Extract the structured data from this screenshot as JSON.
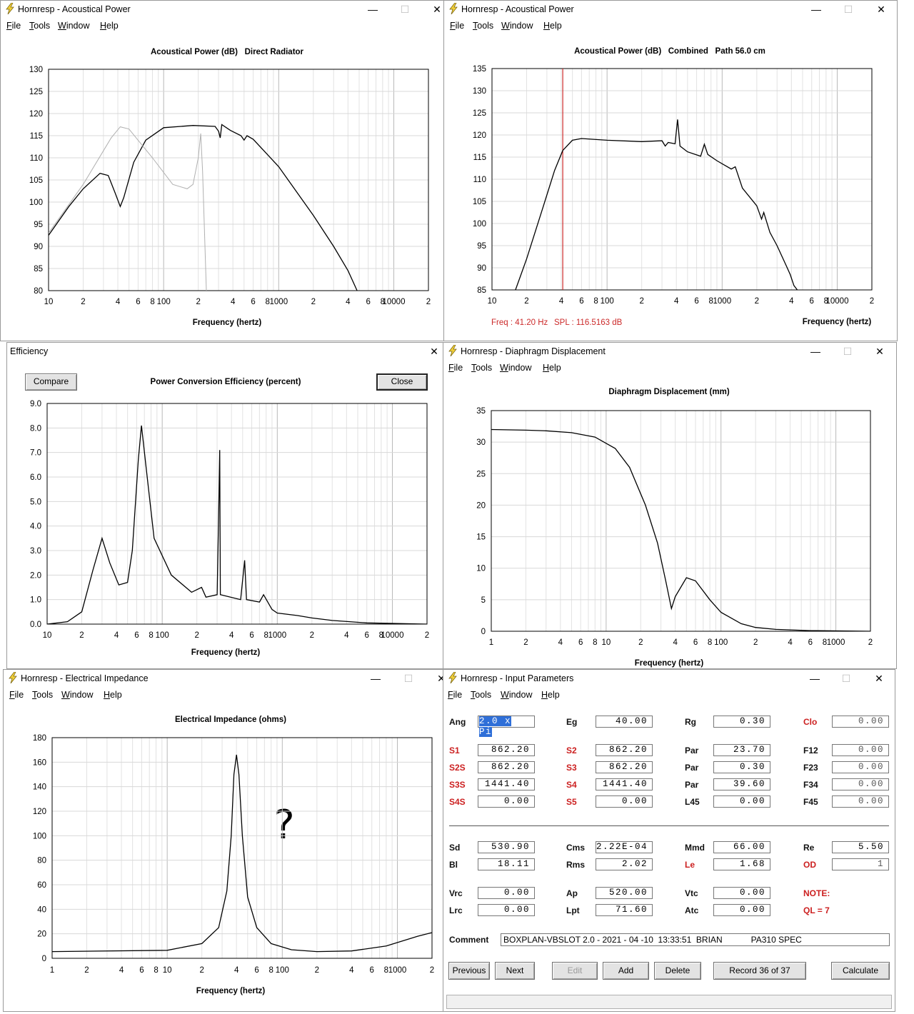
{
  "windows": {
    "acoustical_direct": {
      "title": "Hornresp - Acoustical Power",
      "menu": [
        "File",
        "Tools",
        "Window",
        "Help"
      ]
    },
    "acoustical_combined": {
      "title": "Hornresp - Acoustical Power",
      "menu": [
        "File",
        "Tools",
        "Window",
        "Help"
      ],
      "readout_freq": "Freq : 41.20 Hz",
      "readout_spl": "SPL : 116.5163 dB"
    },
    "efficiency": {
      "title": "Efficiency",
      "compare_label": "Compare",
      "close_label": "Close"
    },
    "displacement": {
      "title": "Hornresp - Diaphragm Displacement",
      "menu": [
        "File",
        "Tools",
        "Window",
        "Help"
      ]
    },
    "impedance": {
      "title": "Hornresp - Electrical Impedance",
      "menu": [
        "File",
        "Tools",
        "Window",
        "Help"
      ],
      "annotation": "?"
    },
    "input": {
      "title": "Hornresp - Input Parameters",
      "menu": [
        "File",
        "Tools",
        "Window",
        "Help"
      ]
    }
  },
  "colors": {
    "accent_red": "#cc2a2a",
    "secondary_curve": "#b0b0b0",
    "selection_blue": "#2f6fd8"
  },
  "icons": {
    "app": "lightning-bolt-icon",
    "minimize": "minimize-icon",
    "maximize": "maximize-icon",
    "close": "close-icon"
  },
  "chart_data": [
    {
      "type": "line",
      "title": "Acoustical Power (dB)   Direct Radiator",
      "xlabel": "Frequency (hertz)",
      "x_scale": "log",
      "xlim": [
        10,
        20000
      ],
      "ylim": [
        80,
        130
      ],
      "yticks": [
        "130",
        "125",
        "120",
        "115",
        "110",
        "105",
        "100",
        "95",
        "90",
        "85",
        "80"
      ],
      "xtick_labels": [
        "10",
        "2",
        "4",
        "6",
        "8",
        "100",
        "2",
        "4",
        "6",
        "8",
        "1000",
        "2",
        "4",
        "6",
        "8",
        "10000",
        "2"
      ],
      "grid": true,
      "series": [
        {
          "color": "#000000",
          "points": [
            [
              10,
              92.5
            ],
            [
              15,
              99
            ],
            [
              20,
              103
            ],
            [
              28,
              106.5
            ],
            [
              33,
              106
            ],
            [
              38,
              102
            ],
            [
              42,
              99
            ],
            [
              45,
              101
            ],
            [
              55,
              109
            ],
            [
              70,
              114
            ],
            [
              100,
              116.8
            ],
            [
              180,
              117.3
            ],
            [
              280,
              117.1
            ],
            [
              300,
              116
            ],
            [
              310,
              114.5
            ],
            [
              320,
              117.5
            ],
            [
              380,
              116.2
            ],
            [
              470,
              115
            ],
            [
              500,
              114
            ],
            [
              530,
              115
            ],
            [
              600,
              114.2
            ],
            [
              1000,
              108
            ],
            [
              2000,
              97
            ],
            [
              3000,
              90
            ],
            [
              4000,
              84.5
            ],
            [
              4800,
              80
            ]
          ]
        },
        {
          "color": "#b0b0b0",
          "points": [
            [
              10,
              93
            ],
            [
              20,
              104
            ],
            [
              35,
              114.5
            ],
            [
              42,
              117
            ],
            [
              50,
              116.5
            ],
            [
              80,
              110
            ],
            [
              120,
              104
            ],
            [
              160,
              103
            ],
            [
              180,
              104
            ],
            [
              200,
              110
            ],
            [
              210,
              115.5
            ],
            [
              218,
              107
            ],
            [
              235,
              80
            ]
          ]
        }
      ]
    },
    {
      "type": "line",
      "title": "Acoustical Power (dB)   Combined   Path 56.0 cm",
      "xlabel": "Frequency (hertz)",
      "x_scale": "log",
      "xlim": [
        10,
        20000
      ],
      "ylim": [
        85,
        135
      ],
      "yticks": [
        "135",
        "130",
        "125",
        "120",
        "115",
        "110",
        "105",
        "100",
        "95",
        "90",
        "85"
      ],
      "xtick_labels": [
        "10",
        "2",
        "4",
        "6",
        "8",
        "100",
        "2",
        "4",
        "6",
        "8",
        "1000",
        "2",
        "4",
        "6",
        "8",
        "10000",
        "2"
      ],
      "grid": true,
      "marker_x": 41.2,
      "series": [
        {
          "color": "#000000",
          "points": [
            [
              16,
              85
            ],
            [
              20,
              92
            ],
            [
              28,
              104
            ],
            [
              35,
              112
            ],
            [
              41.2,
              116.5
            ],
            [
              50,
              118.8
            ],
            [
              60,
              119.2
            ],
            [
              100,
              118.8
            ],
            [
              200,
              118.5
            ],
            [
              300,
              118.7
            ],
            [
              320,
              117.5
            ],
            [
              340,
              118.3
            ],
            [
              390,
              118
            ],
            [
              410,
              123.5
            ],
            [
              430,
              117.5
            ],
            [
              500,
              116.2
            ],
            [
              650,
              115.2
            ],
            [
              700,
              117.9
            ],
            [
              750,
              115.6
            ],
            [
              900,
              114.2
            ],
            [
              1200,
              112.3
            ],
            [
              1300,
              112.8
            ],
            [
              1500,
              108
            ],
            [
              2000,
              104
            ],
            [
              2200,
              101
            ],
            [
              2300,
              102.5
            ],
            [
              2600,
              98
            ],
            [
              3000,
              95
            ],
            [
              3600,
              90.5
            ],
            [
              3900,
              88.5
            ],
            [
              4200,
              86
            ],
            [
              4500,
              85
            ]
          ]
        }
      ]
    },
    {
      "type": "line",
      "title": "Power Conversion Efficiency (percent)",
      "xlabel": "Frequency (hertz)",
      "x_scale": "log",
      "xlim": [
        10,
        20000
      ],
      "ylim": [
        0,
        9
      ],
      "yticks": [
        "9.0",
        "8.0",
        "7.0",
        "6.0",
        "5.0",
        "4.0",
        "3.0",
        "2.0",
        "1.0",
        "0.0"
      ],
      "xtick_labels": [
        "10",
        "2",
        "4",
        "6",
        "8",
        "100",
        "2",
        "4",
        "6",
        "8",
        "1000",
        "2",
        "4",
        "6",
        "8",
        "10000",
        "2"
      ],
      "grid": true,
      "series": [
        {
          "color": "#000000",
          "points": [
            [
              10,
              0
            ],
            [
              15,
              0.1
            ],
            [
              20,
              0.5
            ],
            [
              25,
              2.2
            ],
            [
              30,
              3.5
            ],
            [
              35,
              2.5
            ],
            [
              42,
              1.6
            ],
            [
              50,
              1.7
            ],
            [
              55,
              3
            ],
            [
              62,
              6.7
            ],
            [
              66,
              8.1
            ],
            [
              72,
              6.5
            ],
            [
              85,
              3.5
            ],
            [
              120,
              2
            ],
            [
              180,
              1.3
            ],
            [
              220,
              1.5
            ],
            [
              240,
              1.1
            ],
            [
              300,
              1.2
            ],
            [
              310,
              4.8
            ],
            [
              316,
              7.1
            ],
            [
              320,
              1.2
            ],
            [
              480,
              1
            ],
            [
              520,
              2.6
            ],
            [
              540,
              1
            ],
            [
              700,
              0.9
            ],
            [
              760,
              1.2
            ],
            [
              900,
              0.6
            ],
            [
              1000,
              0.45
            ],
            [
              1500,
              0.35
            ],
            [
              2000,
              0.25
            ],
            [
              3000,
              0.15
            ],
            [
              6000,
              0.05
            ],
            [
              20000,
              0
            ]
          ]
        }
      ]
    },
    {
      "type": "line",
      "title": "Diaphragm Displacement (mm)",
      "xlabel": "Frequency (hertz)",
      "x_scale": "log",
      "xlim": [
        1,
        2000
      ],
      "ylim": [
        0,
        35
      ],
      "yticks": [
        "35",
        "30",
        "25",
        "20",
        "15",
        "10",
        "5",
        "0"
      ],
      "xtick_labels": [
        "1",
        "2",
        "4",
        "6",
        "8",
        "10",
        "2",
        "4",
        "6",
        "8",
        "100",
        "2",
        "4",
        "6",
        "8",
        "1000",
        "2"
      ],
      "grid": true,
      "series": [
        {
          "color": "#000000",
          "points": [
            [
              1,
              32
            ],
            [
              2,
              31.9
            ],
            [
              3,
              31.8
            ],
            [
              5,
              31.5
            ],
            [
              8,
              30.8
            ],
            [
              12,
              29
            ],
            [
              16,
              26
            ],
            [
              22,
              20
            ],
            [
              28,
              14
            ],
            [
              33,
              8
            ],
            [
              37,
              3.6
            ],
            [
              40,
              5.5
            ],
            [
              50,
              8.5
            ],
            [
              60,
              8
            ],
            [
              80,
              5
            ],
            [
              100,
              3
            ],
            [
              150,
              1.2
            ],
            [
              200,
              0.6
            ],
            [
              300,
              0.3
            ],
            [
              600,
              0.1
            ],
            [
              2000,
              0
            ]
          ]
        }
      ]
    },
    {
      "type": "line",
      "title": "Electrical Impedance (ohms)",
      "xlabel": "Frequency (hertz)",
      "x_scale": "log",
      "xlim": [
        1,
        2000
      ],
      "ylim": [
        0,
        180
      ],
      "yticks": [
        "180",
        "160",
        "140",
        "120",
        "100",
        "80",
        "60",
        "40",
        "20",
        "0"
      ],
      "xtick_labels": [
        "1",
        "2",
        "4",
        "6",
        "8",
        "10",
        "2",
        "4",
        "6",
        "8",
        "100",
        "2",
        "4",
        "6",
        "8",
        "1000",
        "2"
      ],
      "grid": true,
      "series": [
        {
          "color": "#000000",
          "points": [
            [
              1,
              5.5
            ],
            [
              10,
              6.5
            ],
            [
              20,
              12
            ],
            [
              28,
              25
            ],
            [
              33,
              55
            ],
            [
              36,
              100
            ],
            [
              38,
              150
            ],
            [
              40,
              166
            ],
            [
              42,
              150
            ],
            [
              45,
              100
            ],
            [
              50,
              50
            ],
            [
              60,
              25
            ],
            [
              80,
              12
            ],
            [
              120,
              7
            ],
            [
              200,
              5.5
            ],
            [
              400,
              6
            ],
            [
              800,
              10
            ],
            [
              1500,
              18
            ],
            [
              2000,
              21
            ]
          ]
        }
      ]
    }
  ],
  "params": {
    "rows": [
      {
        "y": 1010,
        "cells": [
          {
            "l": "Ang",
            "v": "2.0 x Pi",
            "sel": true
          },
          {
            "l": "Eg",
            "v": "40.00"
          },
          {
            "l": "Rg",
            "v": "0.30"
          },
          {
            "l": "Clo",
            "v": "0.00",
            "red": true,
            "gray": true
          }
        ]
      },
      {
        "y": 1050,
        "cells": [
          {
            "l": "S1",
            "v": "862.20",
            "red": true
          },
          {
            "l": "S2",
            "v": "862.20",
            "red": true
          },
          {
            "l": "Par",
            "v": "23.70"
          },
          {
            "l": "F12",
            "v": "0.00",
            "gray": true
          }
        ]
      },
      {
        "y": 1074,
        "cells": [
          {
            "l": "S2S",
            "v": "862.20",
            "red": true
          },
          {
            "l": "S3",
            "v": "862.20",
            "red": true
          },
          {
            "l": "Par",
            "v": "0.30"
          },
          {
            "l": "F23",
            "v": "0.00",
            "gray": true
          }
        ]
      },
      {
        "y": 1098,
        "cells": [
          {
            "l": "S3S",
            "v": "1441.40",
            "red": true
          },
          {
            "l": "S4",
            "v": "1441.40",
            "red": true
          },
          {
            "l": "Par",
            "v": "39.60"
          },
          {
            "l": "F34",
            "v": "0.00",
            "gray": true
          }
        ]
      },
      {
        "y": 1122,
        "cells": [
          {
            "l": "S4S",
            "v": "0.00",
            "red": true
          },
          {
            "l": "S5",
            "v": "0.00",
            "red": true
          },
          {
            "l": "L45",
            "v": "0.00"
          },
          {
            "l": "F45",
            "v": "0.00",
            "gray": true
          }
        ]
      },
      {
        "y": 1186,
        "cells": [
          {
            "l": "Sd",
            "v": "530.90"
          },
          {
            "l": "Cms",
            "v": "2.22E-04"
          },
          {
            "l": "Mmd",
            "v": "66.00"
          },
          {
            "l": "Re",
            "v": "5.50"
          }
        ]
      },
      {
        "y": 1210,
        "cells": [
          {
            "l": "Bl",
            "v": "18.11"
          },
          {
            "l": "Rms",
            "v": "2.02"
          },
          {
            "l": "Le",
            "v": "1.68",
            "red": true
          },
          {
            "l": "OD",
            "v": "1",
            "red": true,
            "gray": true
          }
        ]
      },
      {
        "y": 1250,
        "cells": [
          {
            "l": "Vrc",
            "v": "0.00"
          },
          {
            "l": "Ap",
            "v": "520.00"
          },
          {
            "l": "Vtc",
            "v": "0.00"
          },
          {
            "l": "NOTE:",
            "red": true
          }
        ]
      },
      {
        "y": 1274,
        "cells": [
          {
            "l": "Lrc",
            "v": "0.00"
          },
          {
            "l": "Lpt",
            "v": "71.60"
          },
          {
            "l": "Atc",
            "v": "0.00"
          },
          {
            "l": "QL = 7",
            "red": true
          }
        ]
      }
    ],
    "comment_label": "Comment",
    "comment_value": "BOXPLAN-VBSLOT 2.0 - 2021 - 04 -10  13:33:51  BRIAN            PA310 SPEC",
    "buttons": {
      "previous": "Previous",
      "next": "Next",
      "edit": "Edit",
      "add": "Add",
      "delete": "Delete",
      "record": "Record 36 of 37",
      "calculate": "Calculate"
    }
  }
}
